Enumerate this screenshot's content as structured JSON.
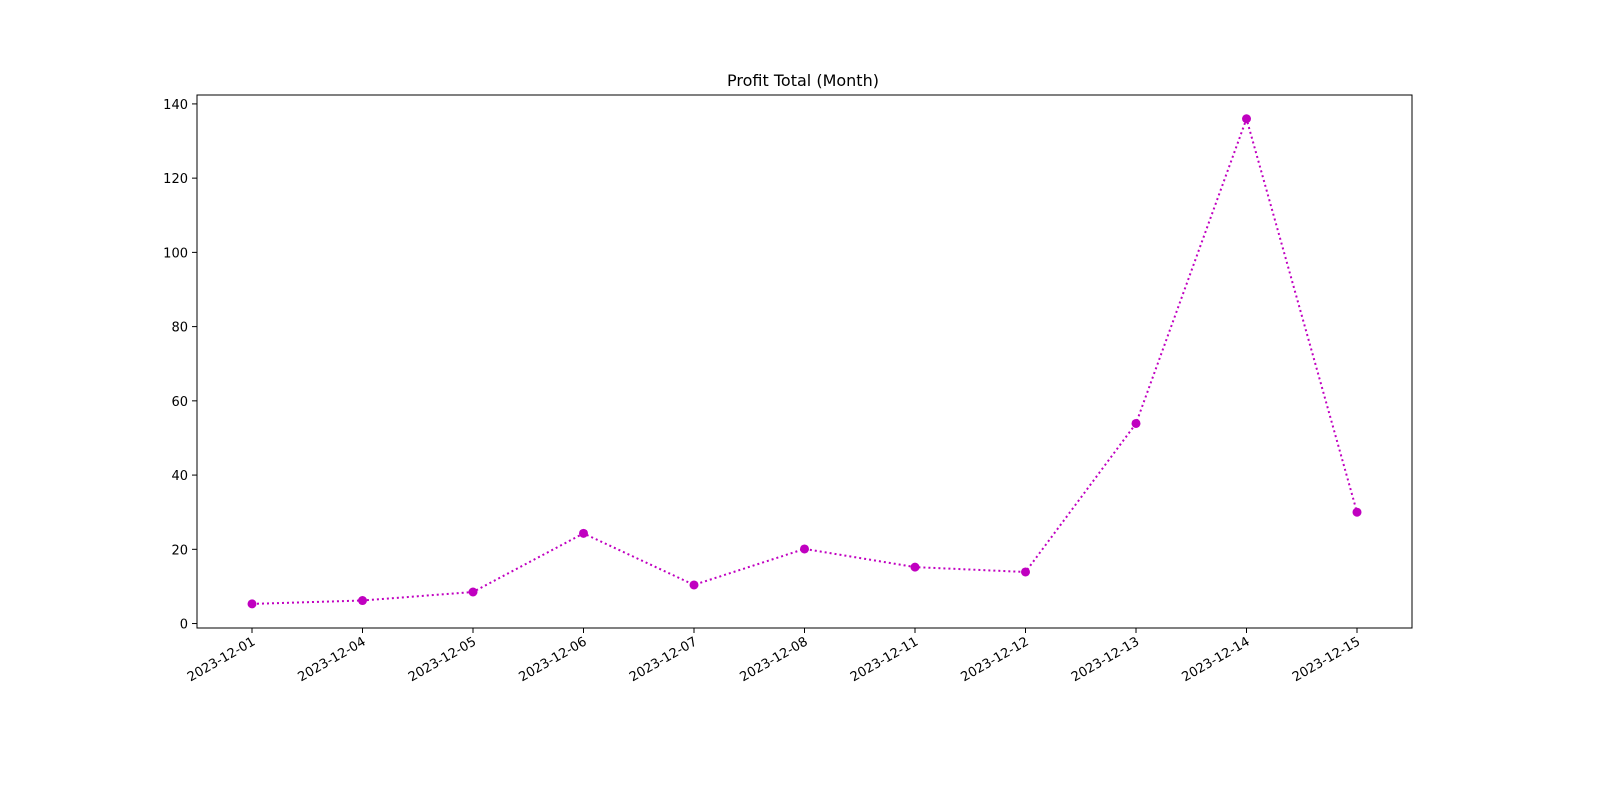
{
  "chart_data": {
    "type": "line",
    "title": "Profit Total (Month)",
    "xlabel": "",
    "ylabel": "",
    "categories": [
      "2023-12-01",
      "2023-12-04",
      "2023-12-05",
      "2023-12-06",
      "2023-12-07",
      "2023-12-08",
      "2023-12-11",
      "2023-12-12",
      "2023-12-13",
      "2023-12-14",
      "2023-12-15"
    ],
    "series": [
      {
        "values": [
          5.3,
          6.2,
          8.5,
          24.3,
          10.4,
          20.1,
          15.2,
          13.9,
          53.9,
          136.0,
          30.0
        ]
      }
    ],
    "ylim": [
      -1.2,
      142.4
    ],
    "yticks": [
      0,
      20,
      40,
      60,
      80,
      100,
      120,
      140
    ],
    "line_style": "dotted",
    "marker": "circle",
    "grid": false,
    "legend": "none",
    "colors": {
      "series": "#c000c0",
      "axes": "#000000",
      "background": "#ffffff"
    }
  }
}
